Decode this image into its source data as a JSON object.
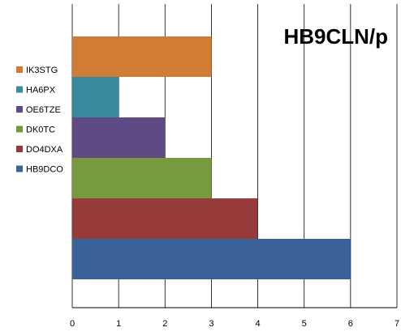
{
  "chart_data": {
    "type": "bar",
    "orientation": "horizontal",
    "title": "HB9CLN/p",
    "xlim": [
      0,
      7
    ],
    "x_ticks": [
      "0",
      "1",
      "2",
      "3",
      "4",
      "5",
      "6",
      "7"
    ],
    "grid": "vertical",
    "legend_position": "left",
    "categories": [
      "HB9DCO",
      "DO4DXA",
      "DK0TC",
      "OE6TZE",
      "HA6PX",
      "IK3STG"
    ],
    "values": [
      6,
      4,
      3,
      2,
      1,
      3
    ],
    "colors": [
      "#3b6199",
      "#963a3a",
      "#789a3e",
      "#5f4a86",
      "#388a9e",
      "#d17c35"
    ],
    "legend": {
      "items": [
        {
          "label": "IK3STG",
          "color": "#d17c35"
        },
        {
          "label": "HA6PX",
          "color": "#388a9e"
        },
        {
          "label": "OE6TZE",
          "color": "#5f4a86"
        },
        {
          "label": "DK0TC",
          "color": "#789a3e"
        },
        {
          "label": "DO4DXA",
          "color": "#963a3a"
        },
        {
          "label": "HB9DCO",
          "color": "#3b6199"
        }
      ]
    }
  }
}
